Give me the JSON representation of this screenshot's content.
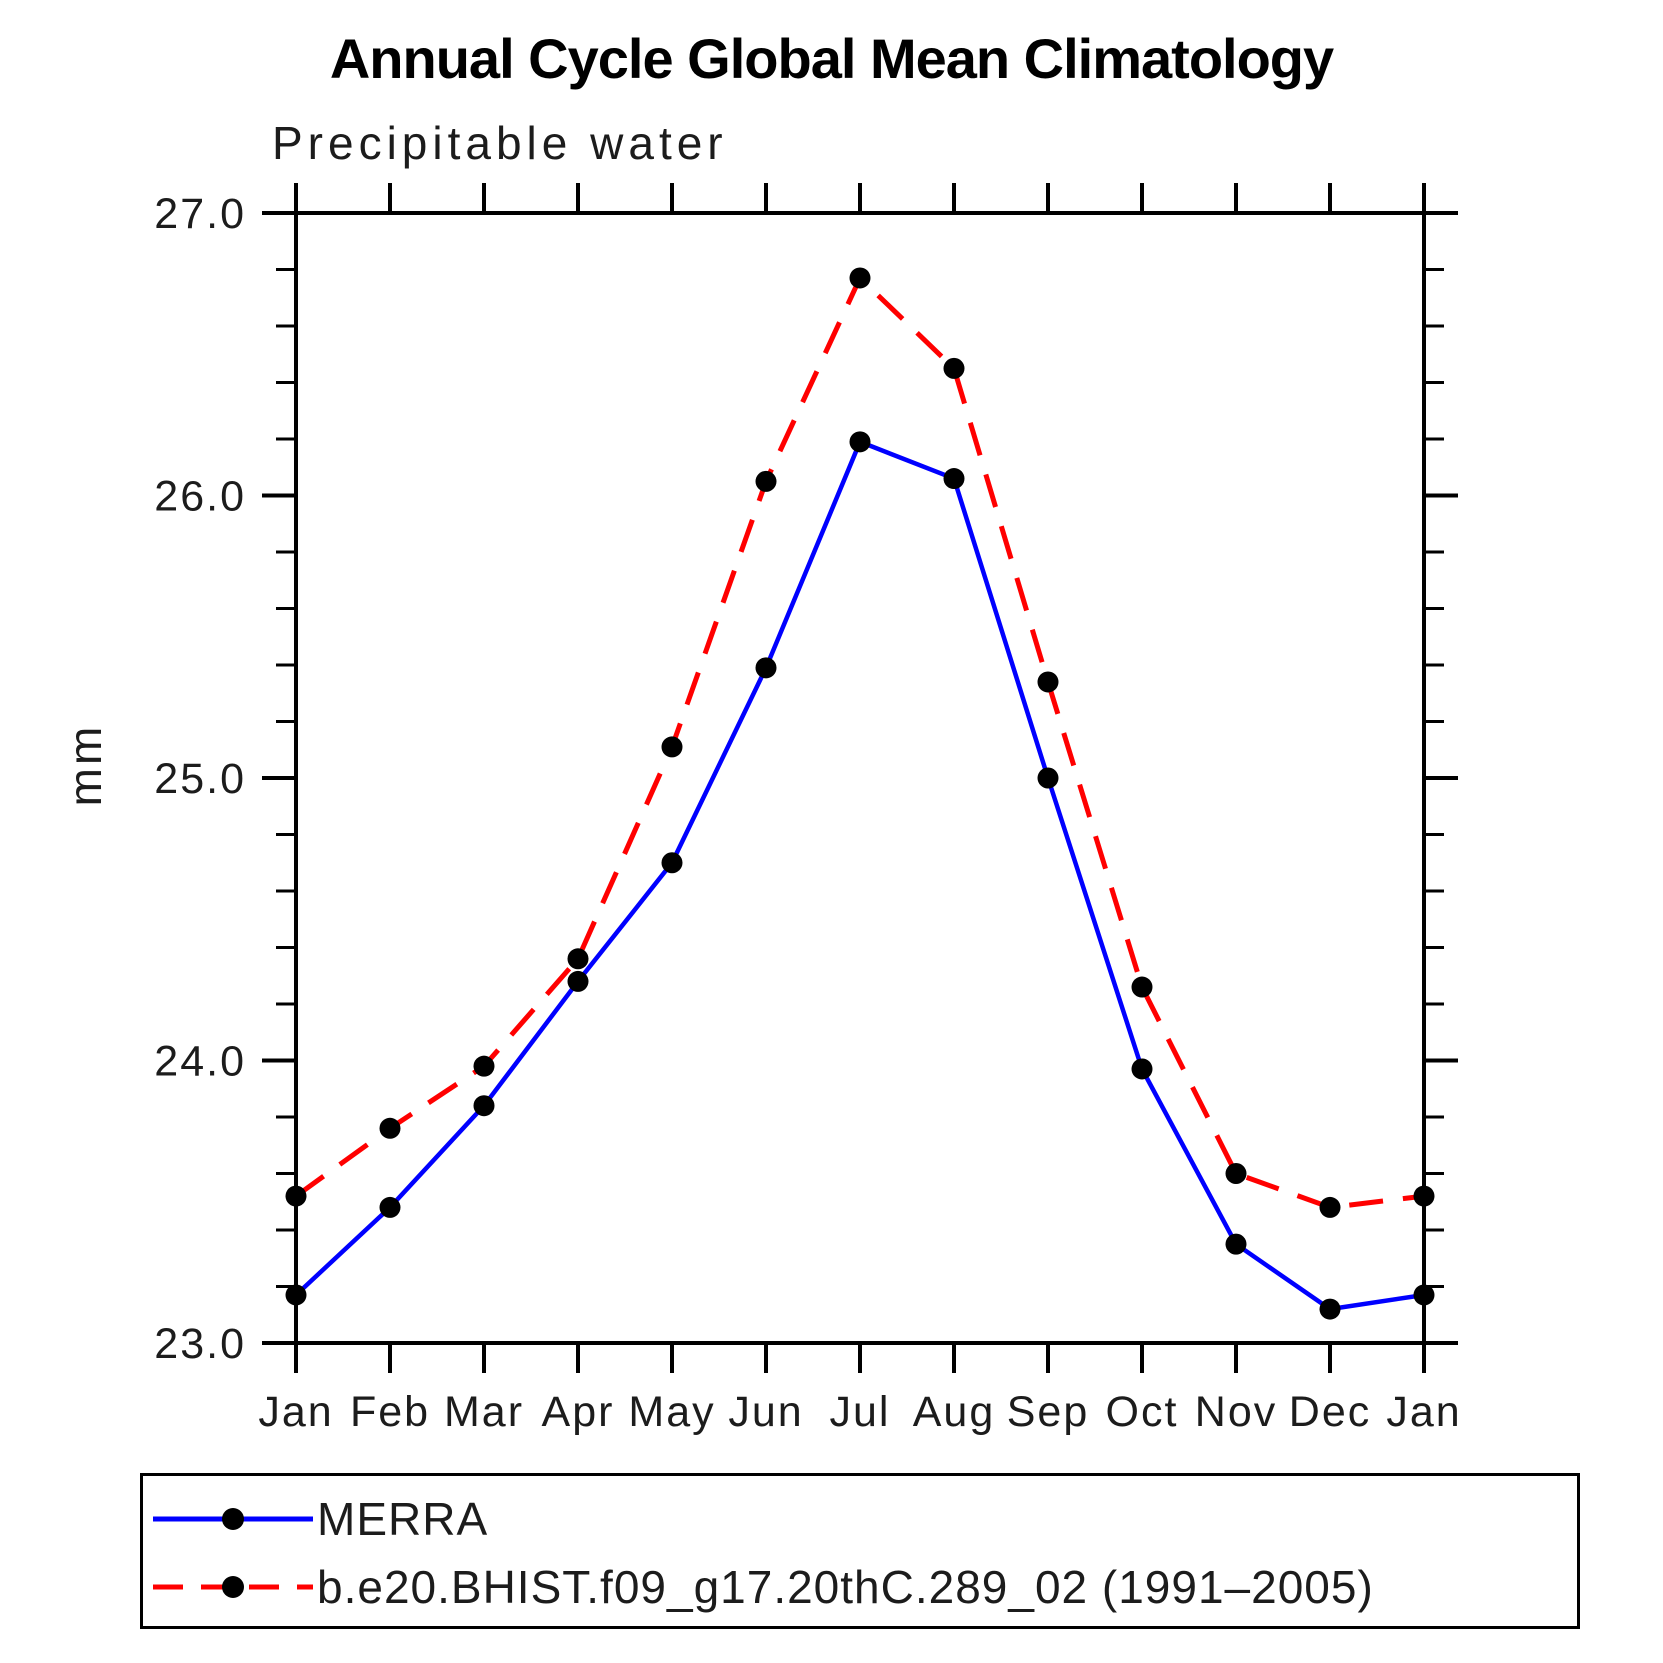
{
  "chart_data": {
    "type": "line",
    "title": "Annual Cycle Global Mean Climatology",
    "subtitle": "Precipitable water",
    "xlabel": "",
    "ylabel": "mm",
    "ylim": [
      23.0,
      27.0
    ],
    "ytick_major": [
      23.0,
      24.0,
      25.0,
      26.0,
      27.0
    ],
    "ytick_labels": [
      "23.0",
      "24.0",
      "25.0",
      "26.0",
      "27.0"
    ],
    "ytick_minor_step": 0.2,
    "categories": [
      "Jan",
      "Feb",
      "Mar",
      "Apr",
      "May",
      "Jun",
      "Jul",
      "Aug",
      "Sep",
      "Oct",
      "Nov",
      "Dec",
      "Jan"
    ],
    "grid": false,
    "legend_position": "bottom-left-box",
    "marker": "filled-circle",
    "marker_color": "#000000",
    "series": [
      {
        "name": "MERRA",
        "color": "#0000ff",
        "style": "solid",
        "values": [
          23.17,
          23.48,
          23.84,
          24.28,
          24.7,
          25.39,
          26.19,
          26.06,
          25.0,
          23.97,
          23.35,
          23.12,
          23.17
        ]
      },
      {
        "name": "b.e20.BHIST.f09_g17.20thC.289_02 (1991–2005)",
        "color": "#ff0000",
        "style": "dashed",
        "values": [
          23.52,
          23.76,
          23.98,
          24.36,
          25.11,
          26.05,
          26.77,
          26.45,
          25.34,
          24.26,
          23.6,
          23.48,
          23.52
        ]
      }
    ]
  }
}
